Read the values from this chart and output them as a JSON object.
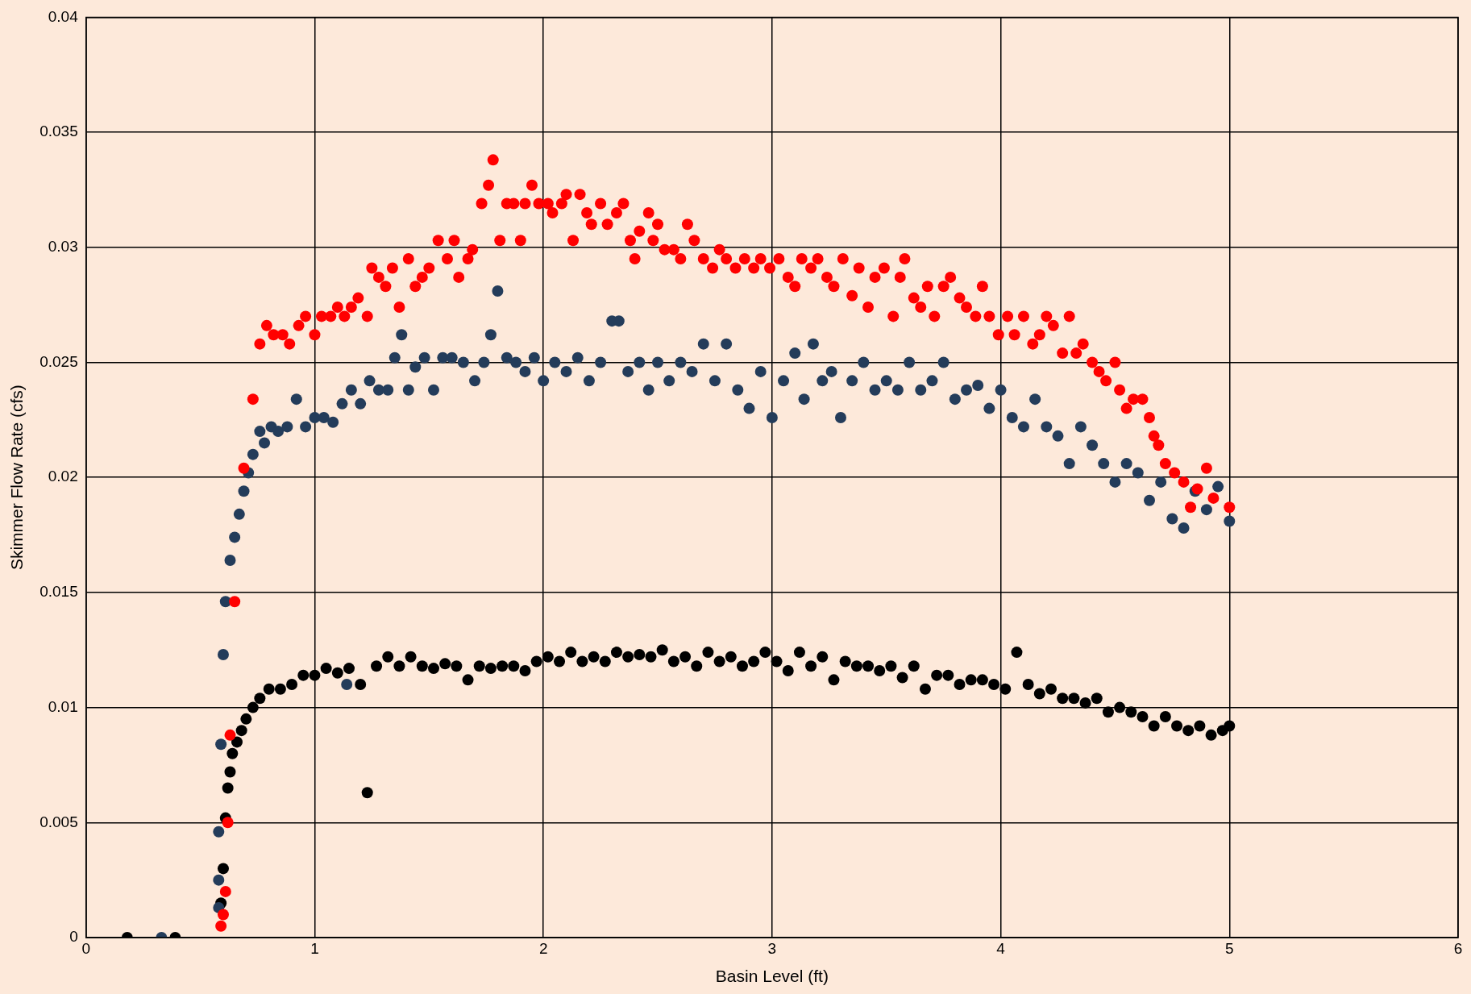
{
  "chart_data": {
    "type": "scatter",
    "xlabel": "Basin Level (ft)",
    "ylabel": "Skimmer Flow Rate (cfs)",
    "xlim": [
      0,
      6
    ],
    "xticks": [
      0,
      1,
      2,
      3,
      4,
      5,
      6
    ],
    "ylim": [
      0,
      0.04
    ],
    "yticks": [
      0,
      0.005,
      0.01,
      0.015,
      0.02,
      0.025,
      0.03,
      0.035,
      0.04
    ],
    "grid": true,
    "legend": false,
    "marker": "circle",
    "series": [
      {
        "color": "#ff0000",
        "x": [
          0.59,
          0.6,
          0.61,
          0.62,
          0.63,
          0.65,
          0.69,
          0.73,
          0.76,
          0.79,
          0.82,
          0.86,
          0.89,
          0.93,
          0.96,
          1.0,
          1.03,
          1.07,
          1.1,
          1.13,
          1.16,
          1.19,
          1.23,
          1.25,
          1.28,
          1.31,
          1.34,
          1.37,
          1.41,
          1.44,
          1.47,
          1.5,
          1.54,
          1.58,
          1.61,
          1.63,
          1.67,
          1.69,
          1.73,
          1.76,
          1.78,
          1.81,
          1.84,
          1.87,
          1.9,
          1.92,
          1.95,
          1.98,
          2.02,
          2.04,
          2.08,
          2.1,
          2.13,
          2.16,
          2.19,
          2.21,
          2.25,
          2.28,
          2.32,
          2.35,
          2.38,
          2.4,
          2.42,
          2.46,
          2.48,
          2.5,
          2.53,
          2.57,
          2.6,
          2.63,
          2.66,
          2.7,
          2.74,
          2.77,
          2.8,
          2.84,
          2.88,
          2.92,
          2.95,
          2.99,
          3.03,
          3.07,
          3.1,
          3.13,
          3.17,
          3.2,
          3.24,
          3.27,
          3.31,
          3.35,
          3.38,
          3.42,
          3.45,
          3.49,
          3.53,
          3.56,
          3.58,
          3.62,
          3.65,
          3.68,
          3.71,
          3.75,
          3.78,
          3.82,
          3.85,
          3.89,
          3.92,
          3.95,
          3.99,
          4.03,
          4.06,
          4.1,
          4.14,
          4.17,
          4.2,
          4.23,
          4.27,
          4.3,
          4.33,
          4.36,
          4.4,
          4.43,
          4.46,
          4.5,
          4.52,
          4.55,
          4.58,
          4.62,
          4.65,
          4.67,
          4.69,
          4.72,
          4.76,
          4.8,
          4.83,
          4.86,
          4.9,
          4.93,
          5.0
        ],
        "values": [
          0.0005,
          0.001,
          0.002,
          0.005,
          0.0088,
          0.0146,
          0.0204,
          0.0234,
          0.0258,
          0.0266,
          0.0262,
          0.0262,
          0.0258,
          0.0266,
          0.027,
          0.0262,
          0.027,
          0.027,
          0.0274,
          0.027,
          0.0274,
          0.0278,
          0.027,
          0.0291,
          0.0287,
          0.0283,
          0.0291,
          0.0274,
          0.0295,
          0.0283,
          0.0287,
          0.0291,
          0.0303,
          0.0295,
          0.0303,
          0.0287,
          0.0295,
          0.0299,
          0.0319,
          0.0327,
          0.0338,
          0.0303,
          0.0319,
          0.0319,
          0.0303,
          0.0319,
          0.0327,
          0.0319,
          0.0319,
          0.0315,
          0.0319,
          0.0323,
          0.0303,
          0.0323,
          0.0315,
          0.031,
          0.0319,
          0.031,
          0.0315,
          0.0319,
          0.0303,
          0.0295,
          0.0307,
          0.0315,
          0.0303,
          0.031,
          0.0299,
          0.0299,
          0.0295,
          0.031,
          0.0303,
          0.0295,
          0.0291,
          0.0299,
          0.0295,
          0.0291,
          0.0295,
          0.0291,
          0.0295,
          0.0291,
          0.0295,
          0.0287,
          0.0283,
          0.0295,
          0.0291,
          0.0295,
          0.0287,
          0.0283,
          0.0295,
          0.0279,
          0.0291,
          0.0274,
          0.0287,
          0.0291,
          0.027,
          0.0287,
          0.0295,
          0.0278,
          0.0274,
          0.0283,
          0.027,
          0.0283,
          0.0287,
          0.0278,
          0.0274,
          0.027,
          0.0283,
          0.027,
          0.0262,
          0.027,
          0.0262,
          0.027,
          0.0258,
          0.0262,
          0.027,
          0.0266,
          0.0254,
          0.027,
          0.0254,
          0.0258,
          0.025,
          0.0246,
          0.0242,
          0.025,
          0.0238,
          0.023,
          0.0234,
          0.0234,
          0.0226,
          0.0218,
          0.0214,
          0.0206,
          0.0202,
          0.0198,
          0.0187,
          0.0195,
          0.0204,
          0.0191,
          0.0187
        ]
      },
      {
        "color": "#243c5a",
        "x": [
          0.33,
          0.58,
          0.58,
          0.58,
          0.59,
          0.6,
          0.61,
          0.63,
          0.65,
          0.67,
          0.69,
          0.71,
          0.73,
          0.76,
          0.78,
          0.81,
          0.84,
          0.88,
          0.92,
          0.96,
          1.0,
          1.04,
          1.08,
          1.12,
          1.14,
          1.16,
          1.2,
          1.24,
          1.28,
          1.32,
          1.35,
          1.38,
          1.41,
          1.44,
          1.48,
          1.52,
          1.56,
          1.6,
          1.65,
          1.7,
          1.74,
          1.77,
          1.8,
          1.84,
          1.88,
          1.92,
          1.96,
          2.0,
          2.05,
          2.1,
          2.15,
          2.2,
          2.25,
          2.3,
          2.33,
          2.37,
          2.42,
          2.46,
          2.5,
          2.55,
          2.6,
          2.65,
          2.7,
          2.75,
          2.8,
          2.85,
          2.9,
          2.95,
          3.0,
          3.05,
          3.1,
          3.14,
          3.18,
          3.22,
          3.26,
          3.3,
          3.35,
          3.4,
          3.45,
          3.5,
          3.55,
          3.6,
          3.65,
          3.7,
          3.75,
          3.8,
          3.85,
          3.9,
          3.95,
          4.0,
          4.05,
          4.1,
          4.15,
          4.2,
          4.25,
          4.3,
          4.35,
          4.4,
          4.45,
          4.5,
          4.55,
          4.6,
          4.65,
          4.7,
          4.75,
          4.8,
          4.85,
          4.9,
          4.95,
          5.0
        ],
        "values": [
          0,
          0.0013,
          0.0025,
          0.0046,
          0.0084,
          0.0123,
          0.0146,
          0.0164,
          0.0174,
          0.0184,
          0.0194,
          0.0202,
          0.021,
          0.022,
          0.0215,
          0.0222,
          0.022,
          0.0222,
          0.0234,
          0.0222,
          0.0226,
          0.0226,
          0.0224,
          0.0232,
          0.011,
          0.0238,
          0.0232,
          0.0242,
          0.0238,
          0.0238,
          0.0252,
          0.0262,
          0.0238,
          0.0248,
          0.0252,
          0.0238,
          0.0252,
          0.0252,
          0.025,
          0.0242,
          0.025,
          0.0262,
          0.0281,
          0.0252,
          0.025,
          0.0246,
          0.0252,
          0.0242,
          0.025,
          0.0246,
          0.0252,
          0.0242,
          0.025,
          0.0268,
          0.0268,
          0.0246,
          0.025,
          0.0238,
          0.025,
          0.0242,
          0.025,
          0.0246,
          0.0258,
          0.0242,
          0.0258,
          0.0238,
          0.023,
          0.0246,
          0.0226,
          0.0242,
          0.0254,
          0.0234,
          0.0258,
          0.0242,
          0.0246,
          0.0226,
          0.0242,
          0.025,
          0.0238,
          0.0242,
          0.0238,
          0.025,
          0.0238,
          0.0242,
          0.025,
          0.0234,
          0.0238,
          0.024,
          0.023,
          0.0238,
          0.0226,
          0.0222,
          0.0234,
          0.0222,
          0.0218,
          0.0206,
          0.0222,
          0.0214,
          0.0206,
          0.0198,
          0.0206,
          0.0202,
          0.019,
          0.0198,
          0.0182,
          0.0178,
          0.0194,
          0.0186,
          0.0196,
          0.0181
        ]
      },
      {
        "color": "#000000",
        "x": [
          0.18,
          0.39,
          0.59,
          0.6,
          0.61,
          0.62,
          0.63,
          0.64,
          0.66,
          0.68,
          0.7,
          0.73,
          0.76,
          0.8,
          0.85,
          0.9,
          0.95,
          1.0,
          1.05,
          1.1,
          1.15,
          1.2,
          1.23,
          1.27,
          1.32,
          1.37,
          1.42,
          1.47,
          1.52,
          1.57,
          1.62,
          1.67,
          1.72,
          1.77,
          1.82,
          1.87,
          1.92,
          1.97,
          2.02,
          2.07,
          2.12,
          2.17,
          2.22,
          2.27,
          2.32,
          2.37,
          2.42,
          2.47,
          2.52,
          2.57,
          2.62,
          2.67,
          2.72,
          2.77,
          2.82,
          2.87,
          2.92,
          2.97,
          3.02,
          3.07,
          3.12,
          3.17,
          3.22,
          3.27,
          3.32,
          3.37,
          3.42,
          3.47,
          3.52,
          3.57,
          3.62,
          3.67,
          3.72,
          3.77,
          3.82,
          3.87,
          3.92,
          3.97,
          4.02,
          4.07,
          4.12,
          4.17,
          4.22,
          4.27,
          4.32,
          4.37,
          4.42,
          4.47,
          4.52,
          4.57,
          4.62,
          4.67,
          4.72,
          4.77,
          4.82,
          4.87,
          4.92,
          4.97,
          5.0
        ],
        "values": [
          0,
          0,
          0.0015,
          0.003,
          0.0052,
          0.0065,
          0.0072,
          0.008,
          0.0085,
          0.009,
          0.0095,
          0.01,
          0.0104,
          0.0108,
          0.0108,
          0.011,
          0.0114,
          0.0114,
          0.0117,
          0.0115,
          0.0117,
          0.011,
          0.0063,
          0.0118,
          0.0122,
          0.0118,
          0.0122,
          0.0118,
          0.0117,
          0.0119,
          0.0118,
          0.0112,
          0.0118,
          0.0117,
          0.0118,
          0.0118,
          0.0116,
          0.012,
          0.0122,
          0.012,
          0.0124,
          0.012,
          0.0122,
          0.012,
          0.0124,
          0.0122,
          0.0123,
          0.0122,
          0.0125,
          0.012,
          0.0122,
          0.0118,
          0.0124,
          0.012,
          0.0122,
          0.0118,
          0.012,
          0.0124,
          0.012,
          0.0116,
          0.0124,
          0.0118,
          0.0122,
          0.0112,
          0.012,
          0.0118,
          0.0118,
          0.0116,
          0.0118,
          0.0113,
          0.0118,
          0.0108,
          0.0114,
          0.0114,
          0.011,
          0.0112,
          0.0112,
          0.011,
          0.0108,
          0.0124,
          0.011,
          0.0106,
          0.0108,
          0.0104,
          0.0104,
          0.0102,
          0.0104,
          0.0098,
          0.01,
          0.0098,
          0.0096,
          0.0092,
          0.0096,
          0.0092,
          0.009,
          0.0092,
          0.0088,
          0.009,
          0.0092
        ]
      }
    ]
  }
}
